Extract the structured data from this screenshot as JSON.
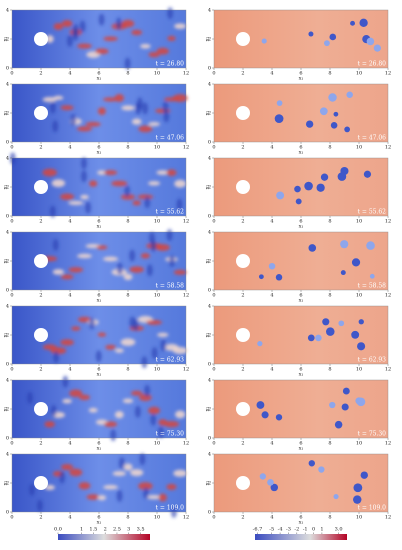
{
  "time_labels": [
    "t = 26.80",
    "t = 47.06",
    "t = 55.62",
    "t = 58.58",
    "t = 62.93",
    "t = 75.30",
    "t = 109.0"
  ],
  "axes": {
    "x_label": "x₁",
    "y_label": "x₂",
    "x_ticks": [
      0,
      2,
      4,
      6,
      8,
      10,
      12
    ],
    "y_ticks": [
      0,
      2,
      4
    ],
    "x_range": [
      0,
      12
    ],
    "y_range": [
      0,
      4
    ]
  },
  "colorbars": [
    {
      "range": [
        0,
        3.9
      ],
      "ticks": [
        {
          "value": 0,
          "label": "0.0"
        },
        1,
        1.5,
        2,
        2.5,
        3,
        3.5
      ]
    },
    {
      "range": [
        -7,
        4
      ],
      "ticks": [
        -6.7,
        -5,
        -4,
        -3,
        -2,
        -1,
        0,
        1,
        {
          "value": 3,
          "label": "3.0"
        }
      ]
    }
  ]
}
